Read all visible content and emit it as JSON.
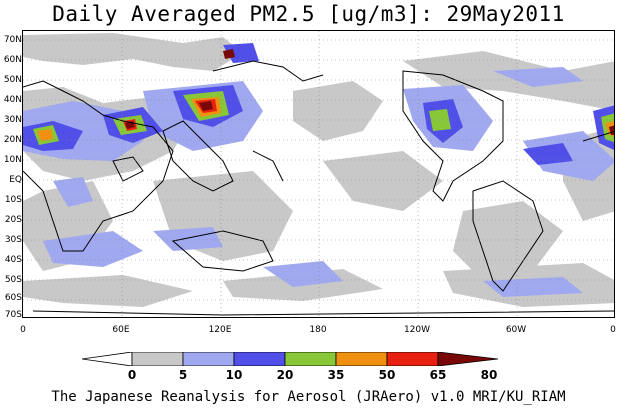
{
  "title": "Daily Averaged PM2.5 [ug/m3]: 29May2011",
  "latitude_labels": [
    "70N",
    "60N",
    "50N",
    "40N",
    "30N",
    "20N",
    "10N",
    "EQ",
    "10S",
    "20S",
    "30S",
    "40S",
    "50S",
    "60S",
    "70S"
  ],
  "longitude_labels": [
    "0",
    "60E",
    "120E",
    "180",
    "120W",
    "60W",
    "0"
  ],
  "colorbar": {
    "thresholds": [
      "0",
      "5",
      "10",
      "20",
      "35",
      "50",
      "65",
      "80"
    ],
    "colors": [
      "#ffffff",
      "#c8c8c8",
      "#a0a8f0",
      "#5050e8",
      "#88c838",
      "#f09010",
      "#e82010",
      "#780808"
    ]
  },
  "credit": "The Japanese Reanalysis for Aerosol (JRAero) v1.0 MRI/KU_RIAM"
}
